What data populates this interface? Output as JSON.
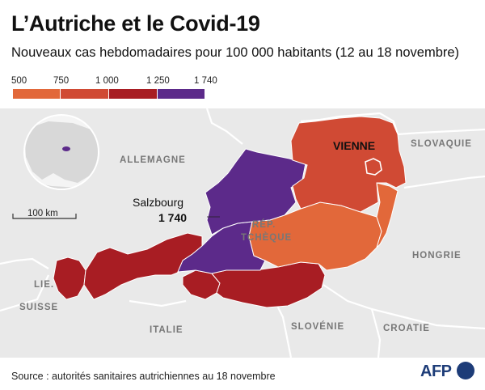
{
  "title": "L’Autriche et le Covid-19",
  "subtitle": "Nouveaux cas hebdomadaires pour 100 000 habitants (12 au 18 novembre)",
  "legend": {
    "ticks": [
      "500",
      "750",
      "1 000",
      "1 250",
      "1 740"
    ],
    "colors": [
      "#e2683a",
      "#d04a34",
      "#a81d23",
      "#5c2a8a"
    ]
  },
  "countries": {
    "rep_tcheque": "RÉP.",
    "rep_tcheque2": "TCHÈQUE",
    "allemagne": "ALLEMAGNE",
    "slovaquie": "SLOVAQUIE",
    "hongrie": "HONGRIE",
    "suisse": "SUISSE",
    "italie": "ITALIE",
    "slovenie": "SLOVÉNIE",
    "croatie": "CROATIE",
    "liechtenstein": "LIE."
  },
  "cities": {
    "vienne": "VIENNE",
    "salzbourg": "Salzbourg",
    "salzbourg_value": "1 740"
  },
  "scale": "100 km",
  "footer": "Source : autorités sanitaires autrichiennes au 18 novembre",
  "logo": "AFP"
}
